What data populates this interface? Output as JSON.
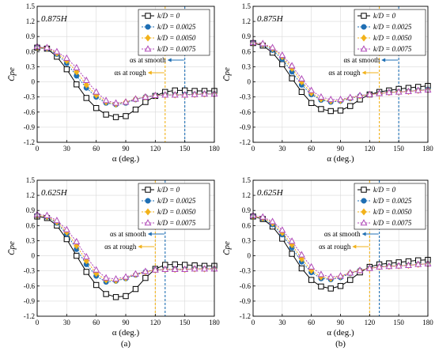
{
  "chart_data": [
    {
      "type": "line",
      "panel": "top-left",
      "annotation": "0.875H",
      "caption": "",
      "xlabel": "α (deg.)",
      "ylabel": "C̄pe",
      "xlim": [
        0,
        180
      ],
      "ylim": [
        -1.2,
        1.5
      ],
      "xticks": [
        0,
        30,
        60,
        90,
        120,
        150,
        180
      ],
      "yticks": [
        1.5,
        1.2,
        0.9,
        0.6,
        0.3,
        0,
        -0.3,
        -0.6,
        -0.9,
        -1.2
      ],
      "x": [
        0,
        10,
        20,
        30,
        40,
        50,
        60,
        70,
        80,
        90,
        100,
        110,
        120,
        130,
        140,
        150,
        160,
        170,
        180
      ],
      "series": [
        {
          "name": "k/D = 0",
          "marker": "square",
          "color": "#000000",
          "values": [
            0.68,
            0.66,
            0.5,
            0.25,
            -0.05,
            -0.32,
            -0.52,
            -0.65,
            -0.7,
            -0.68,
            -0.55,
            -0.4,
            -0.28,
            -0.2,
            -0.17,
            -0.17,
            -0.18,
            -0.18,
            -0.18
          ]
        },
        {
          "name": "k/D = 0.0025",
          "marker": "circle",
          "color": "#1f6fb4",
          "values": [
            0.68,
            0.66,
            0.55,
            0.37,
            0.12,
            -0.12,
            -0.3,
            -0.42,
            -0.45,
            -0.42,
            -0.35,
            -0.3,
            -0.27,
            -0.26,
            -0.26,
            -0.25,
            -0.25,
            -0.24,
            -0.24
          ]
        },
        {
          "name": "k/D = 0.0050",
          "marker": "diamond",
          "color": "#f2b21a",
          "values": [
            0.68,
            0.67,
            0.57,
            0.42,
            0.2,
            -0.06,
            -0.26,
            -0.4,
            -0.44,
            -0.4,
            -0.34,
            -0.3,
            -0.27,
            -0.26,
            -0.26,
            -0.26,
            -0.25,
            -0.24,
            -0.24
          ]
        },
        {
          "name": "k/D = 0.0075",
          "marker": "triangle",
          "color": "#b04ab8",
          "values": [
            0.7,
            0.68,
            0.6,
            0.47,
            0.28,
            0.03,
            -0.2,
            -0.37,
            -0.42,
            -0.4,
            -0.34,
            -0.3,
            -0.27,
            -0.26,
            -0.26,
            -0.26,
            -0.25,
            -0.24,
            -0.24
          ]
        }
      ],
      "vlines": [
        {
          "label": "αs at smooth",
          "x": 150,
          "color": "#1f6fb4"
        },
        {
          "label": "αs at rough",
          "x": 130,
          "color": "#f2b21a"
        }
      ]
    },
    {
      "type": "line",
      "panel": "top-right",
      "annotation": "0.875H",
      "caption": "",
      "xlabel": "α (deg.)",
      "ylabel": "C̄pe",
      "xlim": [
        0,
        180
      ],
      "ylim": [
        -1.2,
        1.5
      ],
      "xticks": [
        0,
        30,
        60,
        90,
        120,
        150,
        180
      ],
      "yticks": [
        1.5,
        1.2,
        0.9,
        0.6,
        0.3,
        0,
        -0.3,
        -0.6,
        -0.9,
        -1.2
      ],
      "x": [
        0,
        10,
        20,
        30,
        40,
        50,
        60,
        70,
        80,
        90,
        100,
        110,
        120,
        130,
        140,
        150,
        160,
        170,
        180
      ],
      "series": [
        {
          "name": "k/D = 0",
          "marker": "square",
          "color": "#000000",
          "values": [
            0.77,
            0.72,
            0.58,
            0.35,
            0.07,
            -0.2,
            -0.42,
            -0.54,
            -0.58,
            -0.57,
            -0.48,
            -0.35,
            -0.25,
            -0.2,
            -0.17,
            -0.14,
            -0.12,
            -0.1,
            -0.08
          ]
        },
        {
          "name": "k/D = 0.0025",
          "marker": "circle",
          "color": "#1f6fb4",
          "values": [
            0.77,
            0.74,
            0.63,
            0.45,
            0.2,
            -0.06,
            -0.25,
            -0.36,
            -0.4,
            -0.38,
            -0.33,
            -0.28,
            -0.25,
            -0.23,
            -0.21,
            -0.2,
            -0.19,
            -0.17,
            -0.15
          ]
        },
        {
          "name": "k/D = 0.0050",
          "marker": "diamond",
          "color": "#f2b21a",
          "values": [
            0.77,
            0.75,
            0.66,
            0.5,
            0.27,
            0.0,
            -0.22,
            -0.34,
            -0.38,
            -0.37,
            -0.32,
            -0.28,
            -0.25,
            -0.23,
            -0.21,
            -0.2,
            -0.19,
            -0.17,
            -0.16
          ]
        },
        {
          "name": "k/D = 0.0075",
          "marker": "triangle",
          "color": "#b04ab8",
          "values": [
            0.78,
            0.76,
            0.68,
            0.53,
            0.32,
            0.06,
            -0.17,
            -0.3,
            -0.35,
            -0.35,
            -0.31,
            -0.27,
            -0.25,
            -0.23,
            -0.21,
            -0.2,
            -0.19,
            -0.17,
            -0.16
          ]
        }
      ],
      "vlines": [
        {
          "label": "αs at smooth",
          "x": 150,
          "color": "#1f6fb4"
        },
        {
          "label": "αs at rough",
          "x": 130,
          "color": "#f2b21a"
        }
      ]
    },
    {
      "type": "line",
      "panel": "bottom-left",
      "annotation": "0.625H",
      "caption": "(a)",
      "xlabel": "α (deg.)",
      "ylabel": "C̄pe",
      "xlim": [
        0,
        180
      ],
      "ylim": [
        -1.2,
        1.5
      ],
      "xticks": [
        0,
        30,
        60,
        90,
        120,
        150,
        180
      ],
      "yticks": [
        1.5,
        1.2,
        0.9,
        0.6,
        0.3,
        0,
        -0.3,
        -0.6,
        -0.9,
        -1.2
      ],
      "x": [
        0,
        10,
        20,
        30,
        40,
        50,
        60,
        70,
        80,
        90,
        100,
        110,
        120,
        130,
        140,
        150,
        160,
        170,
        180
      ],
      "series": [
        {
          "name": "k/D = 0",
          "marker": "square",
          "color": "#000000",
          "values": [
            0.78,
            0.75,
            0.6,
            0.33,
            0.0,
            -0.32,
            -0.58,
            -0.76,
            -0.82,
            -0.8,
            -0.66,
            -0.44,
            -0.26,
            -0.18,
            -0.17,
            -0.18,
            -0.19,
            -0.2,
            -0.2
          ]
        },
        {
          "name": "k/D = 0.0025",
          "marker": "circle",
          "color": "#1f6fb4",
          "values": [
            0.8,
            0.77,
            0.65,
            0.43,
            0.13,
            -0.17,
            -0.4,
            -0.52,
            -0.5,
            -0.45,
            -0.38,
            -0.32,
            -0.28,
            -0.27,
            -0.27,
            -0.27,
            -0.26,
            -0.26,
            -0.26
          ]
        },
        {
          "name": "k/D = 0.0050",
          "marker": "diamond",
          "color": "#f2b21a",
          "values": [
            0.8,
            0.78,
            0.67,
            0.47,
            0.2,
            -0.1,
            -0.35,
            -0.48,
            -0.49,
            -0.44,
            -0.37,
            -0.32,
            -0.28,
            -0.27,
            -0.27,
            -0.27,
            -0.26,
            -0.26,
            -0.26
          ]
        },
        {
          "name": "k/D = 0.0075",
          "marker": "triangle",
          "color": "#b04ab8",
          "values": [
            0.82,
            0.8,
            0.7,
            0.52,
            0.28,
            -0.02,
            -0.28,
            -0.44,
            -0.46,
            -0.42,
            -0.36,
            -0.31,
            -0.28,
            -0.27,
            -0.27,
            -0.27,
            -0.26,
            -0.26,
            -0.26
          ]
        }
      ],
      "vlines": [
        {
          "label": "αs at smooth",
          "x": 130,
          "color": "#1f6fb4"
        },
        {
          "label": "αs at rough",
          "x": 120,
          "color": "#f2b21a"
        }
      ]
    },
    {
      "type": "line",
      "panel": "bottom-right",
      "annotation": "0.625H",
      "caption": "(b)",
      "xlabel": "α (deg.)",
      "ylabel": "C̄pe",
      "xlim": [
        0,
        180
      ],
      "ylim": [
        -1.2,
        1.5
      ],
      "xticks": [
        0,
        30,
        60,
        90,
        120,
        150,
        180
      ],
      "yticks": [
        1.5,
        1.2,
        0.9,
        0.6,
        0.3,
        0,
        -0.3,
        -0.6,
        -0.9,
        -1.2
      ],
      "x": [
        0,
        10,
        20,
        30,
        40,
        50,
        60,
        70,
        80,
        90,
        100,
        110,
        120,
        130,
        140,
        150,
        160,
        170,
        180
      ],
      "series": [
        {
          "name": "k/D = 0",
          "marker": "square",
          "color": "#000000",
          "values": [
            0.78,
            0.73,
            0.58,
            0.34,
            0.04,
            -0.25,
            -0.48,
            -0.61,
            -0.65,
            -0.6,
            -0.48,
            -0.33,
            -0.22,
            -0.17,
            -0.15,
            -0.13,
            -0.11,
            -0.09,
            -0.08
          ]
        },
        {
          "name": "k/D = 0.0025",
          "marker": "circle",
          "color": "#1f6fb4",
          "values": [
            0.78,
            0.74,
            0.62,
            0.42,
            0.16,
            -0.12,
            -0.33,
            -0.45,
            -0.47,
            -0.43,
            -0.35,
            -0.29,
            -0.25,
            -0.22,
            -0.21,
            -0.2,
            -0.19,
            -0.17,
            -0.16
          ]
        },
        {
          "name": "k/D = 0.0050",
          "marker": "diamond",
          "color": "#f2b21a",
          "values": [
            0.78,
            0.75,
            0.65,
            0.46,
            0.22,
            -0.06,
            -0.29,
            -0.42,
            -0.45,
            -0.41,
            -0.34,
            -0.29,
            -0.25,
            -0.22,
            -0.21,
            -0.2,
            -0.19,
            -0.17,
            -0.16
          ]
        },
        {
          "name": "k/D = 0.0075",
          "marker": "triangle",
          "color": "#b04ab8",
          "values": [
            0.8,
            0.77,
            0.68,
            0.51,
            0.29,
            0.02,
            -0.22,
            -0.37,
            -0.42,
            -0.4,
            -0.34,
            -0.29,
            -0.25,
            -0.22,
            -0.21,
            -0.2,
            -0.19,
            -0.17,
            -0.16
          ]
        }
      ],
      "vlines": [
        {
          "label": "αs at smooth",
          "x": 130,
          "color": "#1f6fb4"
        },
        {
          "label": "αs at rough",
          "x": 120,
          "color": "#f2b21a"
        }
      ]
    }
  ]
}
